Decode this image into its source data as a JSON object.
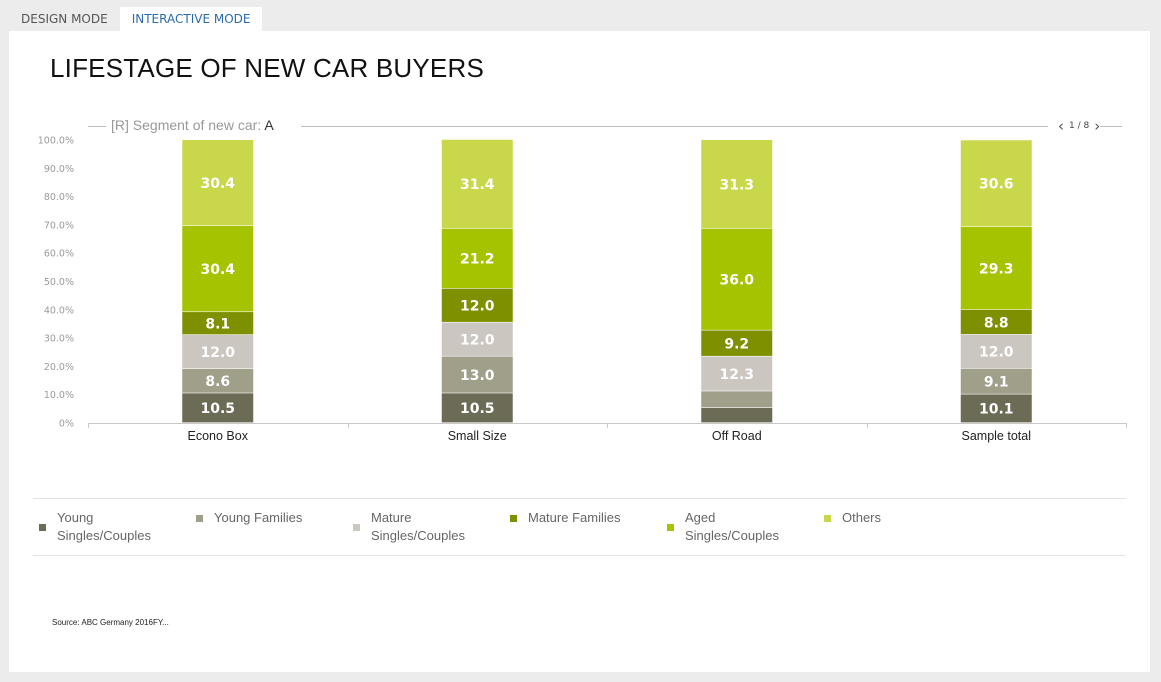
{
  "tabs": [
    {
      "label": "DESIGN MODE"
    },
    {
      "label": "INTERACTIVE MODE"
    }
  ],
  "title": "LIFESTAGE OF NEW CAR BUYERS",
  "segment": {
    "label": "[R] Segment of new car:",
    "value": "A"
  },
  "pager": {
    "text": "1 / 8"
  },
  "source": "Source: ABC Germany 2016FY...",
  "colors": {
    "young_singles": "#6c6b56",
    "young_families": "#a09f89",
    "mature_singles": "#cbc7c0",
    "mature_families": "#7e9000",
    "aged_singles": "#a6c300",
    "others": "#c9d84a"
  },
  "chart_data": {
    "type": "bar",
    "stacked": true,
    "categories": [
      "Econo Box",
      "Small Size",
      "Off Road",
      "Sample total"
    ],
    "ylim": [
      0,
      100
    ],
    "y_ticks": [
      "0%",
      "10.0%",
      "20.0%",
      "30.0%",
      "40.0%",
      "50.0%",
      "60.0%",
      "70.0%",
      "80.0%",
      "90.0%",
      "100.0%"
    ],
    "series": [
      {
        "name": "Young Singles/Couples",
        "color": "#6c6b56",
        "values": [
          10.5,
          10.5,
          5.3,
          10.1
        ],
        "labels": [
          "10.5",
          "10.5",
          "",
          "10.1"
        ]
      },
      {
        "name": "Young Families",
        "color": "#a09f89",
        "values": [
          8.6,
          13.0,
          5.9,
          9.1
        ],
        "labels": [
          "8.6",
          "13.0",
          "",
          "9.1"
        ]
      },
      {
        "name": "Mature Singles/Couples",
        "color": "#cbc7c0",
        "values": [
          12.0,
          12.0,
          12.3,
          12.0
        ],
        "labels": [
          "12.0",
          "12.0",
          "12.3",
          "12.0"
        ]
      },
      {
        "name": "Mature Families",
        "color": "#7e9000",
        "values": [
          8.1,
          12.0,
          9.2,
          8.8
        ],
        "labels": [
          "8.1",
          "12.0",
          "9.2",
          "8.8"
        ]
      },
      {
        "name": "Aged Singles/Couples",
        "color": "#a6c300",
        "values": [
          30.4,
          21.2,
          36.0,
          29.3
        ],
        "labels": [
          "30.4",
          "21.2",
          "36.0",
          "29.3"
        ]
      },
      {
        "name": "Others",
        "color": "#c9d84a",
        "values": [
          30.4,
          31.4,
          31.3,
          30.6
        ],
        "labels": [
          "30.4",
          "31.4",
          "31.3",
          "30.6"
        ]
      }
    ],
    "legend_position": "bottom"
  },
  "legend": [
    {
      "line1": "Young",
      "line2": "Singles/Couples",
      "color": "#6c6b56"
    },
    {
      "line1": "Young Families",
      "line2": "",
      "color": "#a09f89"
    },
    {
      "line1": "Mature",
      "line2": "Singles/Couples",
      "color": "#cbc7c0"
    },
    {
      "line1": "Mature Families",
      "line2": "",
      "color": "#7e9000"
    },
    {
      "line1": "Aged",
      "line2": "Singles/Couples",
      "color": "#a6c300"
    },
    {
      "line1": "Others",
      "line2": "",
      "color": "#c9d84a"
    }
  ]
}
